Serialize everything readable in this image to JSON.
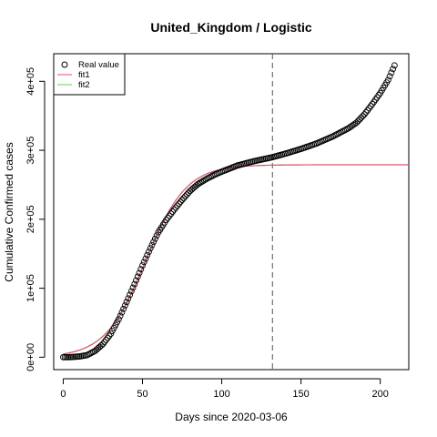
{
  "chart_data": {
    "type": "scatter",
    "title": "United_Kingdom / Logistic",
    "xlabel": "Days since 2020-03-06",
    "ylabel": "Cumulative Confirmed cases",
    "xlim": [
      -6,
      218
    ],
    "ylim": [
      -18000,
      440000
    ],
    "x_ticks": [
      0,
      50,
      100,
      150,
      200
    ],
    "x_tick_labels": [
      "0",
      "50",
      "100",
      "150",
      "200"
    ],
    "y_ticks": [
      0,
      100000,
      200000,
      300000,
      400000
    ],
    "y_tick_labels": [
      "0e+00",
      "1e+05",
      "2e+05",
      "3e+05",
      "4e+05"
    ],
    "legend": {
      "position": "top-left",
      "entries": [
        {
          "label": "Real value",
          "symbol": "open-circle",
          "color": "#000000"
        },
        {
          "label": "fit1",
          "symbol": "line",
          "color": "#DF536B"
        },
        {
          "label": "fit2",
          "symbol": "line",
          "color": "#61D04F"
        }
      ]
    },
    "vline": {
      "x": 132,
      "style": "dashed",
      "color": "#555555"
    },
    "real_value": {
      "name": "Real value",
      "x_start": 0,
      "x_end": 209,
      "knots_x": [
        0,
        5,
        10,
        15,
        20,
        25,
        30,
        35,
        40,
        45,
        50,
        55,
        60,
        65,
        70,
        75,
        80,
        85,
        90,
        95,
        100,
        110,
        120,
        132,
        140,
        150,
        160,
        170,
        180,
        185,
        190,
        195,
        200,
        205,
        209
      ],
      "knots_y": [
        0,
        200,
        1000,
        3000,
        9000,
        19000,
        34000,
        55000,
        80000,
        106000,
        133000,
        158000,
        181000,
        199000,
        214000,
        228000,
        241000,
        251000,
        258000,
        264000,
        269000,
        278000,
        284000,
        290000,
        295000,
        302000,
        310000,
        320000,
        332000,
        340000,
        352000,
        367000,
        383000,
        402000,
        423000
      ]
    },
    "fit1": {
      "name": "fit1",
      "color": "#DF536B",
      "model": "logistic",
      "K": 279000,
      "r": 0.078,
      "t0": 52,
      "x_range": [
        0,
        218
      ]
    },
    "fit2": {
      "name": "fit2",
      "color": "#61D04F",
      "model": "logistic",
      "K": 279000,
      "r": 0.078,
      "t0": 52,
      "x_range": [
        0,
        218
      ]
    }
  }
}
